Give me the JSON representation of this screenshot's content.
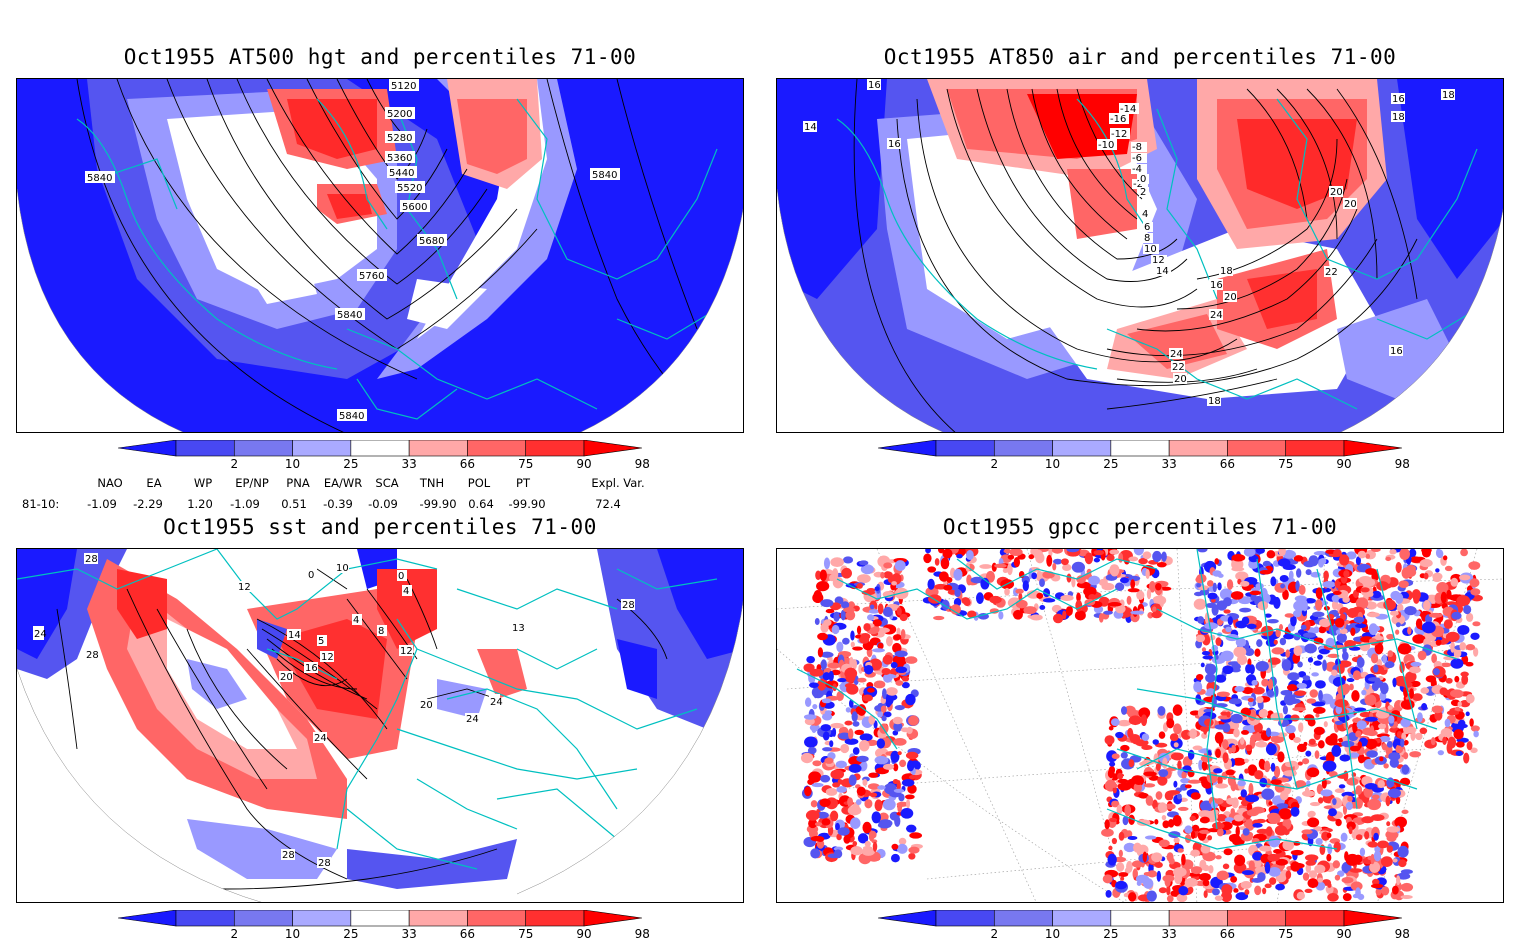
{
  "panels": [
    {
      "title": "Oct1955 AT500 hgt and percentiles 71-00",
      "contour_labels": [
        "5120",
        "5200",
        "5280",
        "5360",
        "5440",
        "5520",
        "5600",
        "5680",
        "5760",
        "5840",
        "5840",
        "5840",
        "5840"
      ]
    },
    {
      "title": "Oct1955 AT850 air and percentiles 71-00",
      "contour_labels": [
        "16",
        "14",
        "16",
        "-16",
        "-14",
        "-12",
        "-10",
        "-8",
        "-6",
        "-4",
        "-2",
        "0",
        "2",
        "4",
        "6",
        "8",
        "10",
        "12",
        "14",
        "16",
        "18",
        "18",
        "20",
        "20",
        "22",
        "24",
        "24",
        "22",
        "20",
        "18",
        "16",
        "18",
        "16",
        "20"
      ]
    },
    {
      "title": "Oct1955 sst and percentiles 71-00",
      "contour_labels": [
        "28",
        "24",
        "28",
        "12",
        "0",
        "10",
        "0",
        "4",
        "4",
        "8",
        "12",
        "14",
        "5",
        "12",
        "16",
        "20",
        "24",
        "20",
        "24",
        "24",
        "28",
        "28",
        "28",
        "13"
      ]
    },
    {
      "title": "Oct1955 gpcc percentiles 71-00",
      "contour_labels": []
    }
  ],
  "colorbar": {
    "labels": [
      "2",
      "10",
      "25",
      "33",
      "66",
      "75",
      "90",
      "98"
    ],
    "colors": [
      "#1a1aff",
      "#4848f2",
      "#7878f0",
      "#aaaaff",
      "#ffffff",
      "#ffa8a8",
      "#ff6666",
      "#ff3030",
      "#ff0000"
    ]
  },
  "indices": {
    "header": [
      "NAO",
      "EA",
      "WP",
      "EP/NP",
      "PNA",
      "EA/WR",
      "SCA",
      "TNH",
      "POL",
      "PT",
      "Expl. Var."
    ],
    "row_label": "81-10:",
    "values": [
      "-1.09",
      "-2.29",
      "1.20",
      "-1.09",
      "0.51",
      "-0.39",
      "-0.09",
      "-99.90",
      "0.64",
      "-99.90",
      "72.4"
    ]
  },
  "map_colors": {
    "coast": "#00c0c0",
    "dark_blue": "#1a1aff",
    "mid_blue": "#5555f0",
    "light_blue": "#9999ff",
    "light_red": "#ff9a9a",
    "mid_red": "#ff5555",
    "dark_red": "#ff0000"
  }
}
